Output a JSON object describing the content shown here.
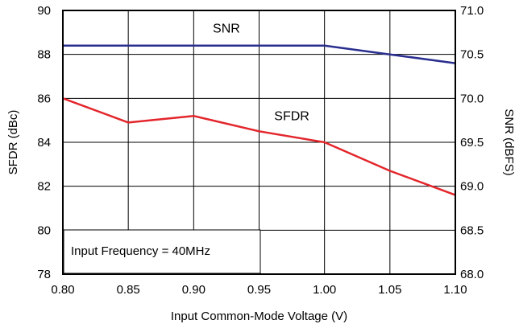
{
  "chart_data": {
    "type": "line",
    "xlabel": "Input Common-Mode Voltage (V)",
    "ylabel_left": "SFDR (dBc)",
    "ylabel_right": "SNR (dBFS)",
    "xlim": [
      0.8,
      1.1
    ],
    "ylim_left": [
      78,
      90
    ],
    "ylim_right": [
      68.0,
      71.0
    ],
    "x_ticks": [
      "0.80",
      "0.85",
      "0.90",
      "0.95",
      "1.00",
      "1.05",
      "1.10"
    ],
    "y_left_ticks": [
      "78",
      "80",
      "82",
      "84",
      "86",
      "88",
      "90"
    ],
    "y_right_ticks": [
      "68.0",
      "68.5",
      "69.0",
      "69.5",
      "70.0",
      "70.5",
      "71.0"
    ],
    "grid": true,
    "annotation": "Input Frequency = 40MHz",
    "series": [
      {
        "name": "SNR",
        "axis": "right",
        "color": "#2a2f8f",
        "x": [
          0.8,
          0.85,
          0.9,
          0.95,
          1.0,
          1.05,
          1.1
        ],
        "y": [
          70.6,
          70.6,
          70.6,
          70.6,
          70.6,
          70.5,
          70.4
        ]
      },
      {
        "name": "SFDR",
        "axis": "left",
        "color": "#e3262c",
        "x": [
          0.8,
          0.85,
          0.9,
          0.95,
          1.0,
          1.05,
          1.1
        ],
        "y": [
          86.0,
          84.9,
          85.2,
          84.5,
          84.0,
          82.7,
          81.6
        ]
      }
    ]
  }
}
